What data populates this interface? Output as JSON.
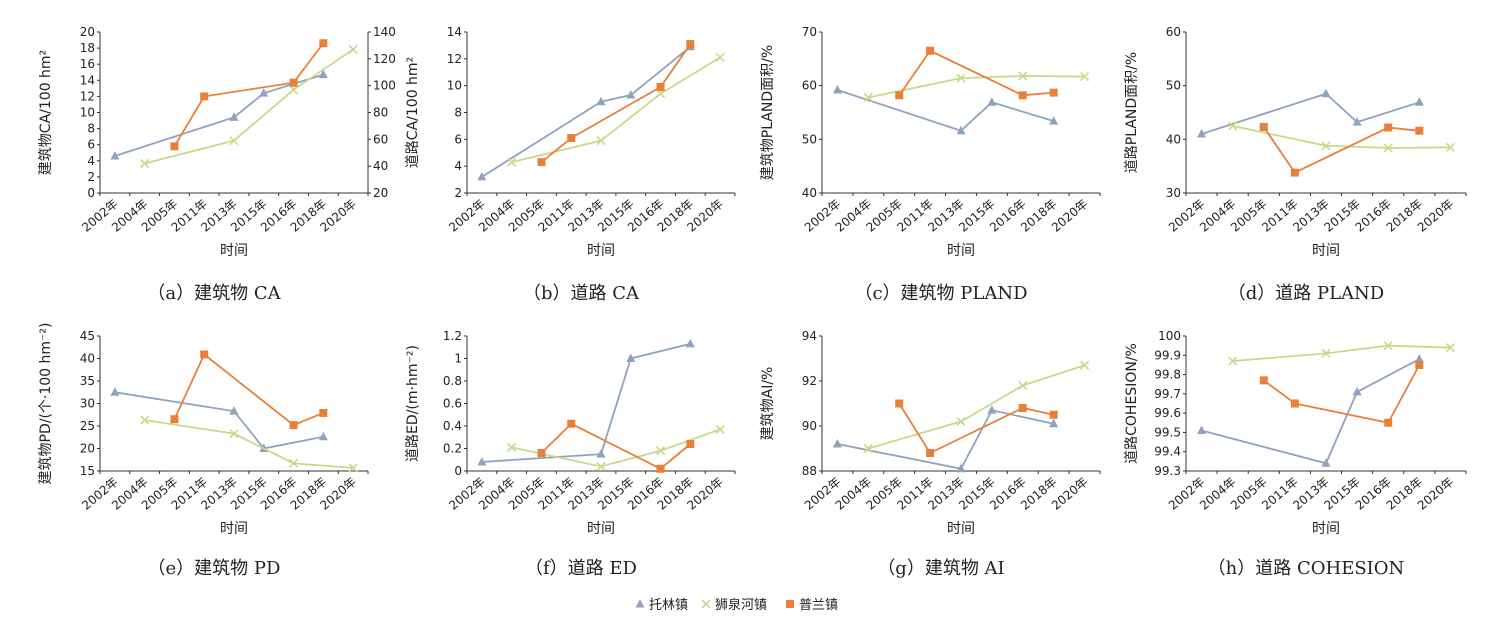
{
  "legend": [
    {
      "name": "托林镇",
      "color": "#8fa2bf",
      "marker": "triangle"
    },
    {
      "name": "狮泉河镇",
      "color": "#c9d98a",
      "marker": "x"
    },
    {
      "name": "普兰镇",
      "color": "#e8803a",
      "marker": "square"
    }
  ],
  "xlabel": "时间",
  "chart_data": [
    {
      "id": "a",
      "type": "line",
      "caption": "（a）建筑物 CA",
      "ylabel": "建筑物CA/100 hm²",
      "categories": [
        "2002年",
        "2004年",
        "2005年",
        "2011年",
        "2013年",
        "2015年",
        "2016年",
        "2018年",
        "2020年"
      ],
      "ylim": [
        0,
        20
      ],
      "yticks": [
        "0",
        "2",
        "4",
        "6",
        "8",
        "10",
        "12",
        "14",
        "16",
        "18",
        "20"
      ],
      "y2lim": [
        20,
        140
      ],
      "y2ticks": [
        "20",
        "40",
        "60",
        "80",
        "100",
        "120",
        "140"
      ],
      "series": [
        {
          "name": "托林镇",
          "axis": "left",
          "points": [
            [
              0,
              4.6
            ],
            [
              4,
              9.4
            ],
            [
              5,
              12.4
            ],
            [
              7,
              14.7
            ]
          ]
        },
        {
          "name": "狮泉河镇",
          "axis": "right",
          "points": [
            [
              1,
              42
            ],
            [
              4,
              59
            ],
            [
              6,
              97
            ],
            [
              8,
              127
            ]
          ]
        },
        {
          "name": "普兰镇",
          "axis": "left",
          "points": [
            [
              2,
              5.8
            ],
            [
              3,
              12.0
            ],
            [
              6,
              13.7
            ],
            [
              7,
              18.6
            ]
          ]
        }
      ]
    },
    {
      "id": "b",
      "type": "line",
      "caption": "（b）道路 CA",
      "ylabel": "道路CA/100 hm²",
      "categories": [
        "2002年",
        "2004年",
        "2005年",
        "2011年",
        "2013年",
        "2015年",
        "2016年",
        "2018年",
        "2020年"
      ],
      "ylim": [
        2,
        14
      ],
      "yticks": [
        "2",
        "4",
        "6",
        "8",
        "10",
        "12",
        "14"
      ],
      "series": [
        {
          "name": "托林镇",
          "points": [
            [
              0,
              3.2
            ],
            [
              4,
              8.8
            ],
            [
              5,
              9.3
            ],
            [
              7,
              12.9
            ]
          ]
        },
        {
          "name": "狮泉河镇",
          "points": [
            [
              1,
              4.3
            ],
            [
              4,
              5.9
            ],
            [
              6,
              9.4
            ],
            [
              8,
              12.1
            ]
          ]
        },
        {
          "name": "普兰镇",
          "points": [
            [
              2,
              4.3
            ],
            [
              3,
              6.1
            ],
            [
              6,
              9.9
            ],
            [
              7,
              13.1
            ]
          ]
        }
      ]
    },
    {
      "id": "c",
      "type": "line",
      "caption": "（c）建筑物 PLAND",
      "ylabel": "建筑物PLAND面积/%",
      "categories": [
        "2002年",
        "2004年",
        "2005年",
        "2011年",
        "2013年",
        "2015年",
        "2016年",
        "2018年",
        "2020年"
      ],
      "ylim": [
        40,
        70
      ],
      "yticks": [
        "40",
        "50",
        "60",
        "70"
      ],
      "series": [
        {
          "name": "托林镇",
          "points": [
            [
              0,
              59.2
            ],
            [
              4,
              51.6
            ],
            [
              5,
              56.9
            ],
            [
              7,
              53.4
            ]
          ]
        },
        {
          "name": "狮泉河镇",
          "points": [
            [
              1,
              57.8
            ],
            [
              4,
              61.4
            ],
            [
              6,
              61.8
            ],
            [
              8,
              61.7
            ]
          ]
        },
        {
          "name": "普兰镇",
          "points": [
            [
              2,
              58.2
            ],
            [
              3,
              66.5
            ],
            [
              6,
              58.2
            ],
            [
              7,
              58.7
            ]
          ]
        }
      ]
    },
    {
      "id": "d",
      "type": "line",
      "caption": "（d）道路 PLAND",
      "ylabel": "道路PLAND面积/%",
      "categories": [
        "2002年",
        "2004年",
        "2005年",
        "2011年",
        "2013年",
        "2015年",
        "2016年",
        "2018年",
        "2020年"
      ],
      "ylim": [
        30,
        60
      ],
      "yticks": [
        "30",
        "40",
        "50",
        "60"
      ],
      "series": [
        {
          "name": "托林镇",
          "points": [
            [
              0,
              41.0
            ],
            [
              4,
              48.5
            ],
            [
              5,
              43.2
            ],
            [
              7,
              46.9
            ]
          ]
        },
        {
          "name": "狮泉河镇",
          "points": [
            [
              1,
              42.5
            ],
            [
              4,
              38.8
            ],
            [
              6,
              38.4
            ],
            [
              8,
              38.5
            ]
          ]
        },
        {
          "name": "普兰镇",
          "points": [
            [
              2,
              42.3
            ],
            [
              3,
              33.8
            ],
            [
              6,
              42.2
            ],
            [
              7,
              41.6
            ]
          ]
        }
      ]
    },
    {
      "id": "e",
      "type": "line",
      "caption": "（e）建筑物 PD",
      "ylabel": "建筑物PD/(个·100 hm⁻²)",
      "categories": [
        "2002年",
        "2004年",
        "2005年",
        "2011年",
        "2013年",
        "2015年",
        "2016年",
        "2018年",
        "2020年"
      ],
      "ylim": [
        15,
        45
      ],
      "yticks": [
        "15",
        "20",
        "25",
        "30",
        "35",
        "40",
        "45"
      ],
      "series": [
        {
          "name": "托林镇",
          "points": [
            [
              0,
              32.5
            ],
            [
              4,
              28.3
            ],
            [
              5,
              20.0
            ],
            [
              7,
              22.6
            ]
          ]
        },
        {
          "name": "狮泉河镇",
          "points": [
            [
              1,
              26.3
            ],
            [
              4,
              23.3
            ],
            [
              6,
              16.7
            ],
            [
              8,
              15.7
            ]
          ]
        },
        {
          "name": "普兰镇",
          "points": [
            [
              2,
              26.5
            ],
            [
              3,
              40.9
            ],
            [
              6,
              25.2
            ],
            [
              7,
              27.9
            ]
          ]
        }
      ]
    },
    {
      "id": "f",
      "type": "line",
      "caption": "（f）道路 ED",
      "ylabel": "道路ED/(m·hm⁻²)",
      "categories": [
        "2002年",
        "2004年",
        "2005年",
        "2011年",
        "2013年",
        "2015年",
        "2016年",
        "2018年",
        "2020年"
      ],
      "ylim": [
        0,
        1.2
      ],
      "yticks": [
        "0",
        "0.2",
        "0.4",
        "0.6",
        "0.8",
        "1",
        "1.2"
      ],
      "series": [
        {
          "name": "托林镇",
          "points": [
            [
              0,
              0.08
            ],
            [
              4,
              0.15
            ],
            [
              5,
              1.0
            ],
            [
              7,
              1.13
            ]
          ]
        },
        {
          "name": "狮泉河镇",
          "points": [
            [
              1,
              0.21
            ],
            [
              4,
              0.04
            ],
            [
              6,
              0.18
            ],
            [
              8,
              0.37
            ]
          ]
        },
        {
          "name": "普兰镇",
          "points": [
            [
              2,
              0.16
            ],
            [
              3,
              0.42
            ],
            [
              6,
              0.02
            ],
            [
              7,
              0.24
            ]
          ]
        }
      ]
    },
    {
      "id": "g",
      "type": "line",
      "caption": "（g）建筑物 AI",
      "ylabel": "建筑物AI/%",
      "categories": [
        "2002年",
        "2004年",
        "2005年",
        "2011年",
        "2013年",
        "2015年",
        "2016年",
        "2018年",
        "2020年"
      ],
      "ylim": [
        88,
        94
      ],
      "yticks": [
        "88",
        "90",
        "92",
        "94"
      ],
      "series": [
        {
          "name": "托林镇",
          "points": [
            [
              0,
              89.2
            ],
            [
              4,
              88.1
            ],
            [
              5,
              90.7
            ],
            [
              7,
              90.1
            ]
          ]
        },
        {
          "name": "狮泉河镇",
          "points": [
            [
              1,
              89.0
            ],
            [
              4,
              90.2
            ],
            [
              6,
              91.8
            ],
            [
              8,
              92.7
            ]
          ]
        },
        {
          "name": "普兰镇",
          "points": [
            [
              2,
              91.0
            ],
            [
              3,
              88.8
            ],
            [
              6,
              90.8
            ],
            [
              7,
              90.5
            ]
          ]
        }
      ]
    },
    {
      "id": "h",
      "type": "line",
      "caption": "（h）道路 COHESION",
      "ylabel": "道路COHESION/%",
      "categories": [
        "2002年",
        "2004年",
        "2005年",
        "2011年",
        "2013年",
        "2015年",
        "2016年",
        "2018年",
        "2020年"
      ],
      "ylim": [
        99.3,
        100
      ],
      "yticks": [
        "99.3",
        "99.4",
        "99.5",
        "99.6",
        "99.7",
        "99.8",
        "99.9",
        "100"
      ],
      "series": [
        {
          "name": "托林镇",
          "points": [
            [
              0,
              99.51
            ],
            [
              4,
              99.34
            ],
            [
              5,
              99.71
            ],
            [
              7,
              99.88
            ]
          ]
        },
        {
          "name": "狮泉河镇",
          "points": [
            [
              1,
              99.87
            ],
            [
              4,
              99.91
            ],
            [
              6,
              99.95
            ],
            [
              8,
              99.94
            ]
          ]
        },
        {
          "name": "普兰镇",
          "points": [
            [
              2,
              99.77
            ],
            [
              3,
              99.65
            ],
            [
              6,
              99.55
            ],
            [
              7,
              99.85
            ]
          ]
        }
      ]
    }
  ]
}
